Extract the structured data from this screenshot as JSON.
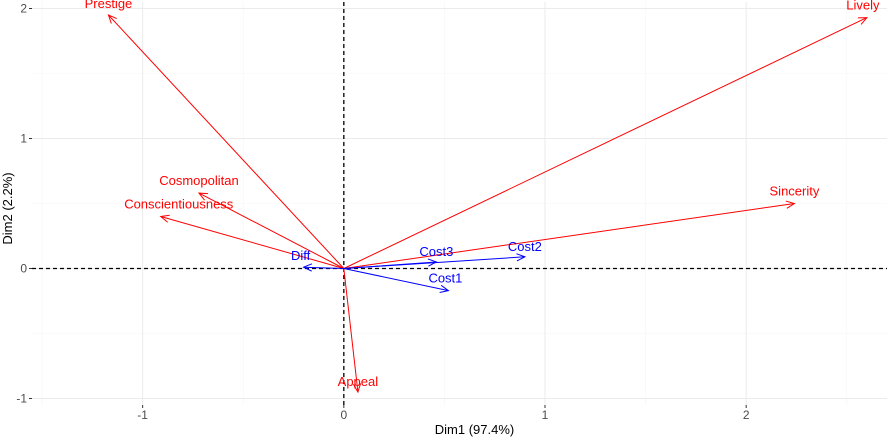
{
  "chart_data": {
    "type": "biplot",
    "xlabel": "Dim1 (97.4%)",
    "ylabel": "Dim2 (2.2%)",
    "xlim": [
      -1.55,
      2.7
    ],
    "ylim": [
      -1.05,
      2.05
    ],
    "x_ticks": [
      {
        "value": -1,
        "label": "-1"
      },
      {
        "value": 0,
        "label": "0"
      },
      {
        "value": 1,
        "label": "1"
      },
      {
        "value": 2,
        "label": "2"
      }
    ],
    "y_ticks": [
      {
        "value": -1,
        "label": "-1"
      },
      {
        "value": 0,
        "label": "0"
      },
      {
        "value": 1,
        "label": "1"
      },
      {
        "value": 2,
        "label": "2"
      }
    ],
    "grid": true,
    "reference_lines": {
      "x": 0,
      "y": 0,
      "style": "dashed"
    },
    "colors": {
      "group_red": "#ff0000",
      "group_blue": "#0000ff",
      "grid_major": "#ebebeb",
      "grid_minor": "#f5f5f5"
    },
    "series": [
      {
        "color": "#ff0000",
        "vectors": [
          {
            "label": "Prestige",
            "x": -1.17,
            "y": 1.95
          },
          {
            "label": "Lively",
            "x": 2.6,
            "y": 1.93
          },
          {
            "label": "Cosmopolitan",
            "x": -0.72,
            "y": 0.58
          },
          {
            "label": "Conscientiousness",
            "x": -0.91,
            "y": 0.4
          },
          {
            "label": "Sincerity",
            "x": 2.24,
            "y": 0.5
          },
          {
            "label": "Appeal",
            "x": 0.07,
            "y": -0.95
          }
        ]
      },
      {
        "color": "#0000ff",
        "vectors": [
          {
            "label": "Diff",
            "x": -0.2,
            "y": 0.01
          },
          {
            "label": "Cost3",
            "x": 0.46,
            "y": 0.05
          },
          {
            "label": "Cost2",
            "x": 0.9,
            "y": 0.09
          },
          {
            "label": "Cost1",
            "x": 0.52,
            "y": -0.17
          }
        ]
      }
    ]
  }
}
